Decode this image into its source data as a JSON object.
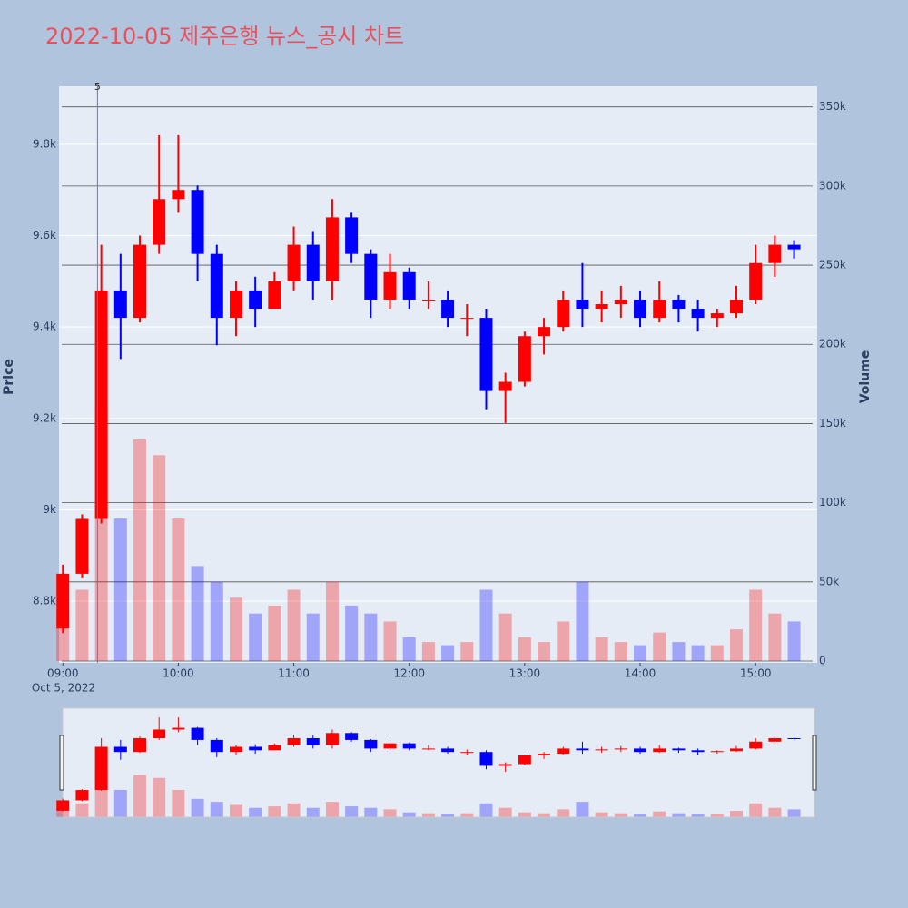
{
  "chart_data": {
    "type": "candlestick",
    "title": "2022-10-05 제주은행 뉴스_공시 차트",
    "y_label": "Price",
    "y2_label": "Volume",
    "x": [
      "2022-10-05 09:00",
      "2022-10-05 09:10",
      "2022-10-05 09:20",
      "2022-10-05 09:30",
      "2022-10-05 09:40",
      "2022-10-05 09:50",
      "2022-10-05 10:00",
      "2022-10-05 10:10",
      "2022-10-05 10:20",
      "2022-10-05 10:30",
      "2022-10-05 10:40",
      "2022-10-05 10:50",
      "2022-10-05 11:00",
      "2022-10-05 11:10",
      "2022-10-05 11:20",
      "2022-10-05 11:30",
      "2022-10-05 11:40",
      "2022-10-05 11:50",
      "2022-10-05 12:00",
      "2022-10-05 12:10",
      "2022-10-05 12:20",
      "2022-10-05 12:30",
      "2022-10-05 12:40",
      "2022-10-05 12:50",
      "2022-10-05 13:00",
      "2022-10-05 13:10",
      "2022-10-05 13:20",
      "2022-10-05 13:30",
      "2022-10-05 13:40",
      "2022-10-05 13:50",
      "2022-10-05 14:00",
      "2022-10-05 14:10",
      "2022-10-05 14:20",
      "2022-10-05 14:30",
      "2022-10-05 14:40",
      "2022-10-05 14:50",
      "2022-10-05 15:00",
      "2022-10-05 15:10",
      "2022-10-05 15:20"
    ],
    "open": [
      8740,
      8860,
      8980,
      9480,
      9420,
      9580,
      9680,
      9700,
      9560,
      9420,
      9480,
      9440,
      9500,
      9580,
      9500,
      9640,
      9560,
      9460,
      9520,
      9460,
      9460,
      9420,
      9420,
      9260,
      9280,
      9380,
      9400,
      9460,
      9440,
      9450,
      9460,
      9420,
      9460,
      9440,
      9420,
      9430,
      9460,
      9540,
      9580
    ],
    "high": [
      8880,
      8990,
      9580,
      9560,
      9600,
      9820,
      9820,
      9710,
      9580,
      9500,
      9510,
      9520,
      9620,
      9610,
      9680,
      9650,
      9570,
      9560,
      9530,
      9500,
      9480,
      9450,
      9440,
      9300,
      9390,
      9420,
      9480,
      9540,
      9480,
      9490,
      9480,
      9500,
      9470,
      9460,
      9440,
      9490,
      9580,
      9600,
      9590
    ],
    "low": [
      8730,
      8850,
      8970,
      9330,
      9410,
      9560,
      9650,
      9500,
      9360,
      9380,
      9400,
      9440,
      9480,
      9460,
      9460,
      9540,
      9420,
      9440,
      9440,
      9440,
      9400,
      9380,
      9220,
      9190,
      9270,
      9340,
      9390,
      9400,
      9410,
      9420,
      9400,
      9410,
      9410,
      9390,
      9400,
      9420,
      9450,
      9510,
      9550
    ],
    "close": [
      8860,
      8980,
      9480,
      9420,
      9580,
      9680,
      9700,
      9560,
      9420,
      9480,
      9440,
      9500,
      9580,
      9500,
      9640,
      9560,
      9460,
      9520,
      9460,
      9460,
      9420,
      9420,
      9260,
      9280,
      9380,
      9400,
      9460,
      9440,
      9450,
      9460,
      9420,
      9460,
      9440,
      9420,
      9430,
      9460,
      9540,
      9580,
      9570
    ],
    "volume": [
      30000,
      45000,
      160000,
      90000,
      140000,
      130000,
      90000,
      60000,
      50000,
      40000,
      30000,
      35000,
      45000,
      30000,
      50000,
      35000,
      30000,
      25000,
      15000,
      12000,
      10000,
      12000,
      45000,
      30000,
      15000,
      12000,
      25000,
      50000,
      15000,
      12000,
      10000,
      18000,
      12000,
      10000,
      10000,
      20000,
      45000,
      30000,
      25000
    ],
    "up_color": "#ff0000",
    "down_color": "#0000ff",
    "xlim": [
      "2022-10-05 08:58",
      "2022-10-05 15:32"
    ],
    "xticks": [
      {
        "value": "2022-10-05 09:00",
        "label": "09:00"
      },
      {
        "value": "2022-10-05 10:00",
        "label": "10:00"
      },
      {
        "value": "2022-10-05 11:00",
        "label": "11:00"
      },
      {
        "value": "2022-10-05 12:00",
        "label": "12:00"
      },
      {
        "value": "2022-10-05 13:00",
        "label": "13:00"
      },
      {
        "value": "2022-10-05 14:00",
        "label": "14:00"
      },
      {
        "value": "2022-10-05 15:00",
        "label": "15:00"
      }
    ],
    "xtick_sublabel": "Oct 5, 2022",
    "ylim": [
      8665,
      9927
    ],
    "yticks": [
      {
        "value": 8800,
        "label": "8.8k"
      },
      {
        "value": 9000,
        "label": "9k"
      },
      {
        "value": 9200,
        "label": "9.2k"
      },
      {
        "value": 9400,
        "label": "9.4k"
      },
      {
        "value": 9600,
        "label": "9.6k"
      },
      {
        "value": 9800,
        "label": "9.8k"
      }
    ],
    "y2lim": [
      -1150,
      363000
    ],
    "y2ticks": [
      0,
      {
        "value": 50000,
        "label": "50k"
      },
      {
        "value": 100000,
        "label": "100k"
      },
      {
        "value": 150000,
        "label": "150k"
      },
      {
        "value": 200000,
        "label": "200k"
      },
      {
        "value": 250000,
        "label": "250k"
      },
      {
        "value": 300000,
        "label": "300k"
      },
      {
        "value": 350000,
        "label": "350k"
      }
    ],
    "grid": true,
    "annotations": [
      {
        "x": "2022-10-05 09:18",
        "text": "5"
      }
    ],
    "rangeslider": true
  }
}
